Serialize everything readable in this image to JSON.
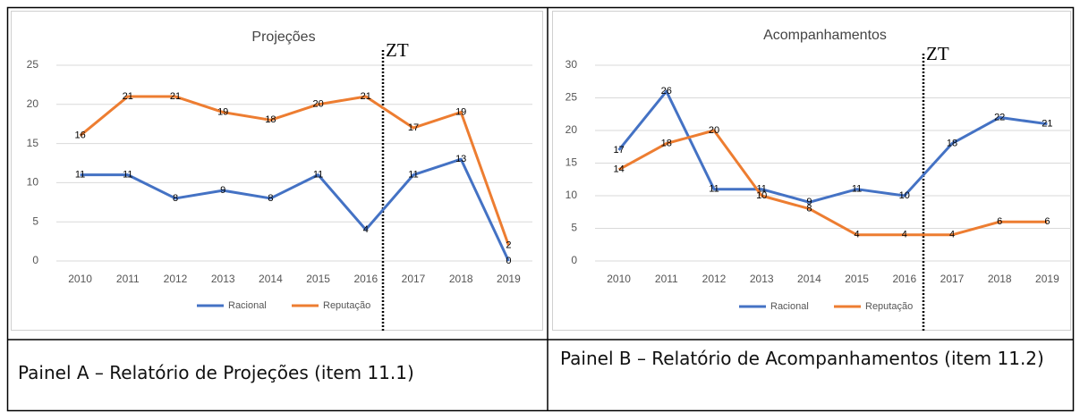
{
  "chart_data": [
    {
      "type": "line",
      "title": "Projeções",
      "annotation": "ZT",
      "categories": [
        "2010",
        "2011",
        "2012",
        "2013",
        "2014",
        "2015",
        "2016",
        "2017",
        "2018",
        "2019"
      ],
      "series": [
        {
          "name": "Racional",
          "color": "#4472c4",
          "values": [
            11,
            11,
            8,
            9,
            8,
            11,
            4,
            11,
            13,
            0
          ]
        },
        {
          "name": "Reputação",
          "color": "#ed7d31",
          "values": [
            16,
            21,
            21,
            19,
            18,
            20,
            21,
            17,
            19,
            2
          ]
        }
      ],
      "ylim": [
        0,
        25
      ],
      "yticks": [
        0,
        5,
        10,
        15,
        20,
        25
      ],
      "grid": true,
      "legend": "bottom"
    },
    {
      "type": "line",
      "title": "Acompanhamentos",
      "annotation": "ZT",
      "categories": [
        "2010",
        "2011",
        "2012",
        "2013",
        "2014",
        "2015",
        "2016",
        "2017",
        "2018",
        "2019"
      ],
      "series": [
        {
          "name": "Racional",
          "color": "#4472c4",
          "values": [
            17,
            26,
            11,
            11,
            9,
            11,
            10,
            18,
            22,
            21
          ]
        },
        {
          "name": "Reputação",
          "color": "#ed7d31",
          "values": [
            14,
            18,
            20,
            10,
            8,
            4,
            4,
            4,
            6,
            6
          ]
        }
      ],
      "ylim": [
        0,
        30
      ],
      "yticks": [
        0,
        5,
        10,
        15,
        20,
        25,
        30
      ],
      "grid": true,
      "legend": "bottom"
    }
  ],
  "captions": [
    "Painel A – Relatório de Projeções (item 11.1)",
    "Painel B – Relatório de Acompanhamentos (item 11.2)"
  ]
}
